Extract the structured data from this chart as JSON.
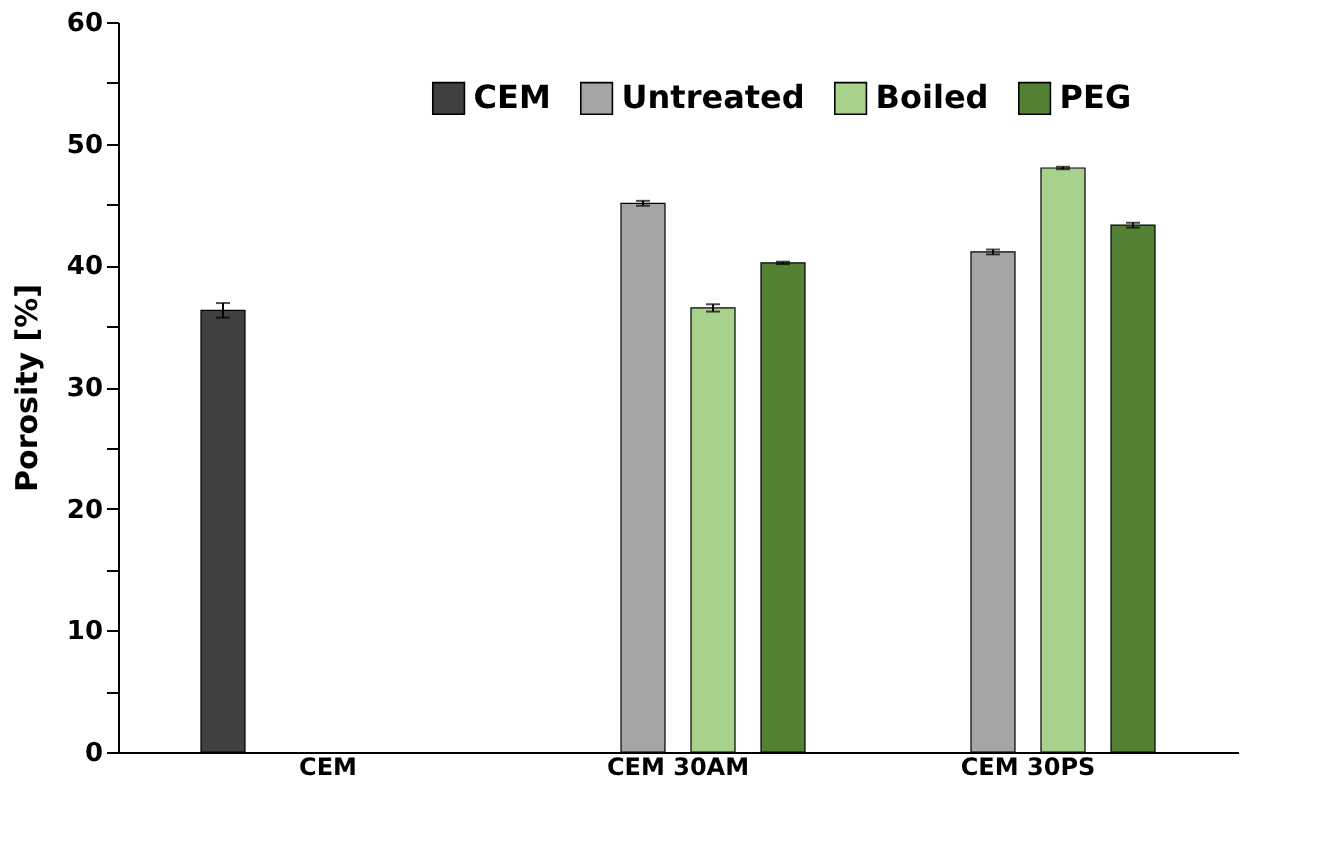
{
  "chart_data": {
    "type": "bar",
    "ylabel": "Porosity [%]",
    "categories": [
      "CEM",
      "CEM  30AM",
      "CEM  30PS"
    ],
    "series": [
      {
        "name": "CEM",
        "color": "#404040",
        "values": [
          36.3,
          null,
          null
        ],
        "errors": [
          0.6,
          null,
          null
        ]
      },
      {
        "name": "Untreated",
        "color": "#a5a5a5",
        "values": [
          null,
          45.1,
          41.1
        ],
        "errors": [
          null,
          0.2,
          0.2
        ]
      },
      {
        "name": "Boiled",
        "color": "#a9d18e",
        "values": [
          null,
          36.5,
          48.0
        ],
        "errors": [
          null,
          0.3,
          0.1
        ]
      },
      {
        "name": "PEG",
        "color": "#548235",
        "values": [
          null,
          40.2,
          43.3
        ],
        "errors": [
          null,
          0.1,
          0.2
        ]
      }
    ],
    "ylim": [
      0,
      60
    ],
    "yticks": [
      0,
      {
        "value": 5,
        "label": null
      },
      10,
      {
        "value": 15,
        "label": null
      },
      20,
      {
        "value": 25,
        "label": null
      },
      30,
      {
        "value": 35,
        "label": null
      },
      40,
      {
        "value": 45,
        "label": null
      },
      50,
      {
        "value": 55,
        "label": null
      },
      60
    ],
    "grid": false,
    "legend": "top"
  }
}
